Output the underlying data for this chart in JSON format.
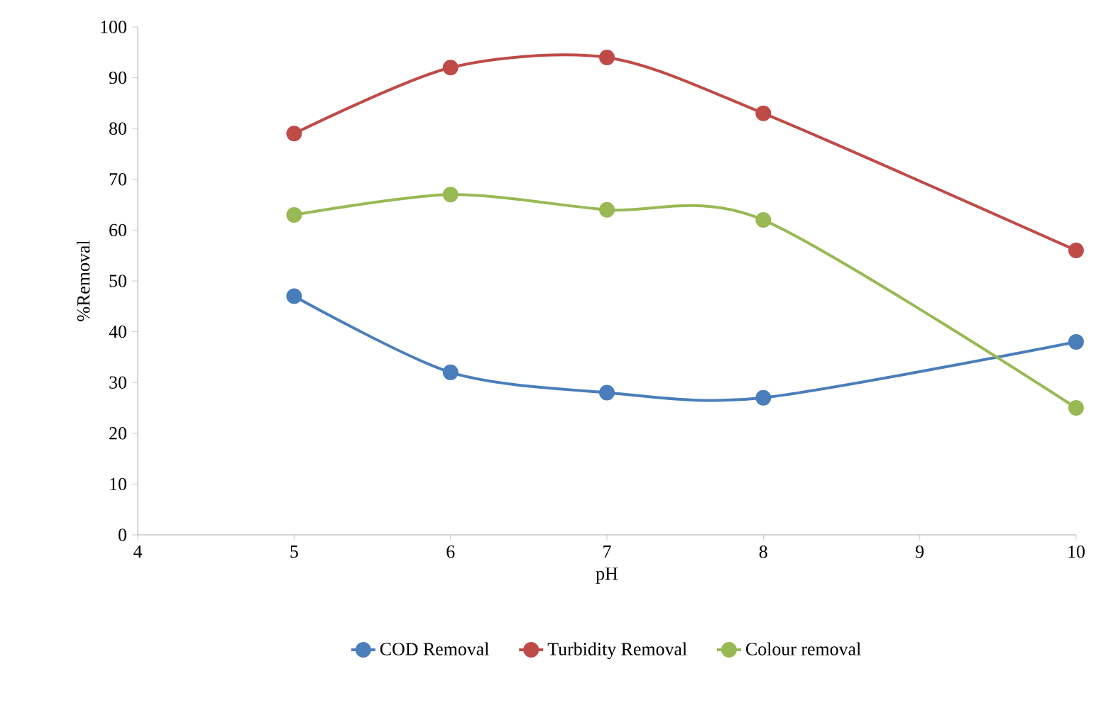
{
  "chart_data": {
    "type": "line",
    "xlabel": "pH",
    "ylabel": "%Removal",
    "x": [
      5,
      6,
      7,
      8,
      10
    ],
    "xlim": [
      4,
      10
    ],
    "xticks": [
      4,
      5,
      6,
      7,
      8,
      9,
      10
    ],
    "ylim": [
      0,
      100
    ],
    "yticks": [
      0,
      10,
      20,
      30,
      40,
      50,
      60,
      70,
      80,
      90,
      100
    ],
    "marker": "circle",
    "legend": "bottom",
    "grid": false,
    "series": [
      {
        "name": "COD Removal",
        "color": "#4a7ebb",
        "values": [
          47,
          32,
          28,
          27,
          38
        ]
      },
      {
        "name": "Turbidity Removal",
        "color": "#be4b48",
        "values": [
          79,
          92,
          94,
          83,
          56
        ]
      },
      {
        "name": "Colour removal",
        "color": "#98b954",
        "values": [
          63,
          67,
          64,
          62,
          25
        ]
      }
    ]
  }
}
